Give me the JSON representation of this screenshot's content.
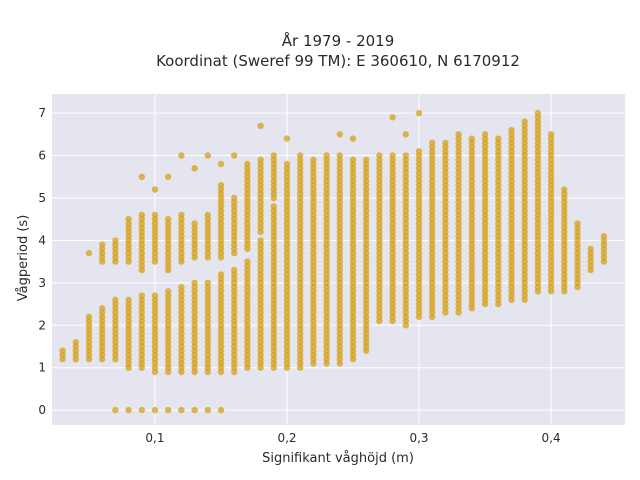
{
  "chart_data": {
    "type": "scatter",
    "title_line1": "År 1979 - 2019",
    "title_line2": "Koordinat (Sweref 99 TM): E 360610, N 6170912",
    "xlabel": "Signifikant våghöjd (m)",
    "ylabel": "Vågperiod (s)",
    "xlim": [
      0.022,
      0.456
    ],
    "ylim": [
      -0.35,
      7.45
    ],
    "x_ticks": [
      0.1,
      0.2,
      0.3,
      0.4
    ],
    "x_tick_labels": [
      "0,1",
      "0,2",
      "0,3",
      "0,4"
    ],
    "y_ticks": [
      0,
      1,
      2,
      3,
      4,
      5,
      6,
      7
    ],
    "y_tick_labels": [
      "0",
      "1",
      "2",
      "3",
      "4",
      "5",
      "6",
      "7"
    ],
    "grid": true,
    "marker_color": "#d4a017",
    "background_color": "#e5e5ef",
    "x_step": 0.01,
    "point_step": 0.1,
    "columns": [
      {
        "x": 0.03,
        "ranges": [
          [
            1.2,
            1.4
          ]
        ]
      },
      {
        "x": 0.04,
        "ranges": [
          [
            1.2,
            1.6
          ]
        ]
      },
      {
        "x": 0.05,
        "ranges": [
          [
            1.2,
            2.2
          ]
        ],
        "extra": [
          3.7
        ]
      },
      {
        "x": 0.06,
        "ranges": [
          [
            1.2,
            2.4
          ],
          [
            3.5,
            3.9
          ]
        ]
      },
      {
        "x": 0.07,
        "ranges": [
          [
            1.2,
            2.6
          ],
          [
            3.5,
            4.0
          ]
        ],
        "extra": [
          0
        ]
      },
      {
        "x": 0.08,
        "ranges": [
          [
            1.0,
            2.6
          ],
          [
            3.5,
            4.5
          ]
        ],
        "extra": [
          0
        ]
      },
      {
        "x": 0.09,
        "ranges": [
          [
            1.0,
            2.7
          ],
          [
            3.3,
            4.6
          ]
        ],
        "extra": [
          0,
          5.5
        ]
      },
      {
        "x": 0.1,
        "ranges": [
          [
            0.9,
            2.7
          ],
          [
            3.5,
            4.6
          ]
        ],
        "extra": [
          0,
          5.2
        ]
      },
      {
        "x": 0.11,
        "ranges": [
          [
            0.9,
            2.8
          ],
          [
            3.3,
            4.5
          ]
        ],
        "extra": [
          0,
          5.5
        ]
      },
      {
        "x": 0.12,
        "ranges": [
          [
            0.9,
            2.9
          ],
          [
            3.5,
            4.6
          ]
        ],
        "extra": [
          0,
          6.0
        ]
      },
      {
        "x": 0.13,
        "ranges": [
          [
            0.9,
            3.0
          ],
          [
            3.6,
            4.4
          ]
        ],
        "extra": [
          0,
          5.7
        ]
      },
      {
        "x": 0.14,
        "ranges": [
          [
            0.9,
            3.0
          ],
          [
            3.6,
            4.6
          ]
        ],
        "extra": [
          0,
          6.0
        ]
      },
      {
        "x": 0.15,
        "ranges": [
          [
            0.9,
            3.2
          ],
          [
            3.6,
            5.3
          ]
        ],
        "extra": [
          0,
          5.8
        ]
      },
      {
        "x": 0.16,
        "ranges": [
          [
            0.9,
            3.3
          ],
          [
            3.7,
            5.0
          ]
        ],
        "extra": [
          6.0
        ]
      },
      {
        "x": 0.17,
        "ranges": [
          [
            1.0,
            3.5
          ],
          [
            3.8,
            5.8
          ]
        ]
      },
      {
        "x": 0.18,
        "ranges": [
          [
            1.0,
            4.0
          ],
          [
            4.2,
            5.9
          ]
        ],
        "extra": [
          6.7
        ]
      },
      {
        "x": 0.19,
        "ranges": [
          [
            1.0,
            4.8
          ],
          [
            5.0,
            6.0
          ]
        ]
      },
      {
        "x": 0.2,
        "ranges": [
          [
            1.0,
            5.8
          ]
        ],
        "extra": [
          6.4
        ]
      },
      {
        "x": 0.21,
        "ranges": [
          [
            1.0,
            6.0
          ]
        ]
      },
      {
        "x": 0.22,
        "ranges": [
          [
            1.1,
            5.9
          ]
        ]
      },
      {
        "x": 0.23,
        "ranges": [
          [
            1.1,
            6.0
          ]
        ]
      },
      {
        "x": 0.24,
        "ranges": [
          [
            1.1,
            6.0
          ]
        ],
        "extra": [
          6.5
        ]
      },
      {
        "x": 0.25,
        "ranges": [
          [
            1.2,
            5.9
          ]
        ],
        "extra": [
          6.4
        ]
      },
      {
        "x": 0.26,
        "ranges": [
          [
            1.4,
            5.9
          ]
        ]
      },
      {
        "x": 0.27,
        "ranges": [
          [
            2.1,
            6.0
          ]
        ]
      },
      {
        "x": 0.28,
        "ranges": [
          [
            2.1,
            6.0
          ]
        ],
        "extra": [
          6.9
        ]
      },
      {
        "x": 0.29,
        "ranges": [
          [
            2.0,
            6.0
          ]
        ],
        "extra": [
          6.5
        ]
      },
      {
        "x": 0.3,
        "ranges": [
          [
            2.2,
            6.1
          ]
        ],
        "extra": [
          7.0
        ]
      },
      {
        "x": 0.31,
        "ranges": [
          [
            2.2,
            6.3
          ]
        ]
      },
      {
        "x": 0.32,
        "ranges": [
          [
            2.3,
            6.3
          ]
        ]
      },
      {
        "x": 0.33,
        "ranges": [
          [
            2.3,
            6.4
          ]
        ],
        "extra": [
          6.5
        ]
      },
      {
        "x": 0.34,
        "ranges": [
          [
            2.4,
            6.4
          ]
        ]
      },
      {
        "x": 0.35,
        "ranges": [
          [
            2.5,
            6.5
          ]
        ]
      },
      {
        "x": 0.36,
        "ranges": [
          [
            2.5,
            6.4
          ]
        ]
      },
      {
        "x": 0.37,
        "ranges": [
          [
            2.6,
            6.6
          ]
        ]
      },
      {
        "x": 0.38,
        "ranges": [
          [
            2.6,
            6.8
          ]
        ]
      },
      {
        "x": 0.39,
        "ranges": [
          [
            2.8,
            7.0
          ]
        ]
      },
      {
        "x": 0.4,
        "ranges": [
          [
            2.8,
            6.5
          ]
        ]
      },
      {
        "x": 0.41,
        "ranges": [
          [
            2.8,
            5.2
          ]
        ]
      },
      {
        "x": 0.42,
        "ranges": [
          [
            2.9,
            4.4
          ]
        ]
      },
      {
        "x": 0.43,
        "ranges": [
          [
            3.3,
            3.8
          ]
        ]
      },
      {
        "x": 0.44,
        "ranges": [
          [
            3.5,
            4.1
          ]
        ]
      }
    ]
  }
}
